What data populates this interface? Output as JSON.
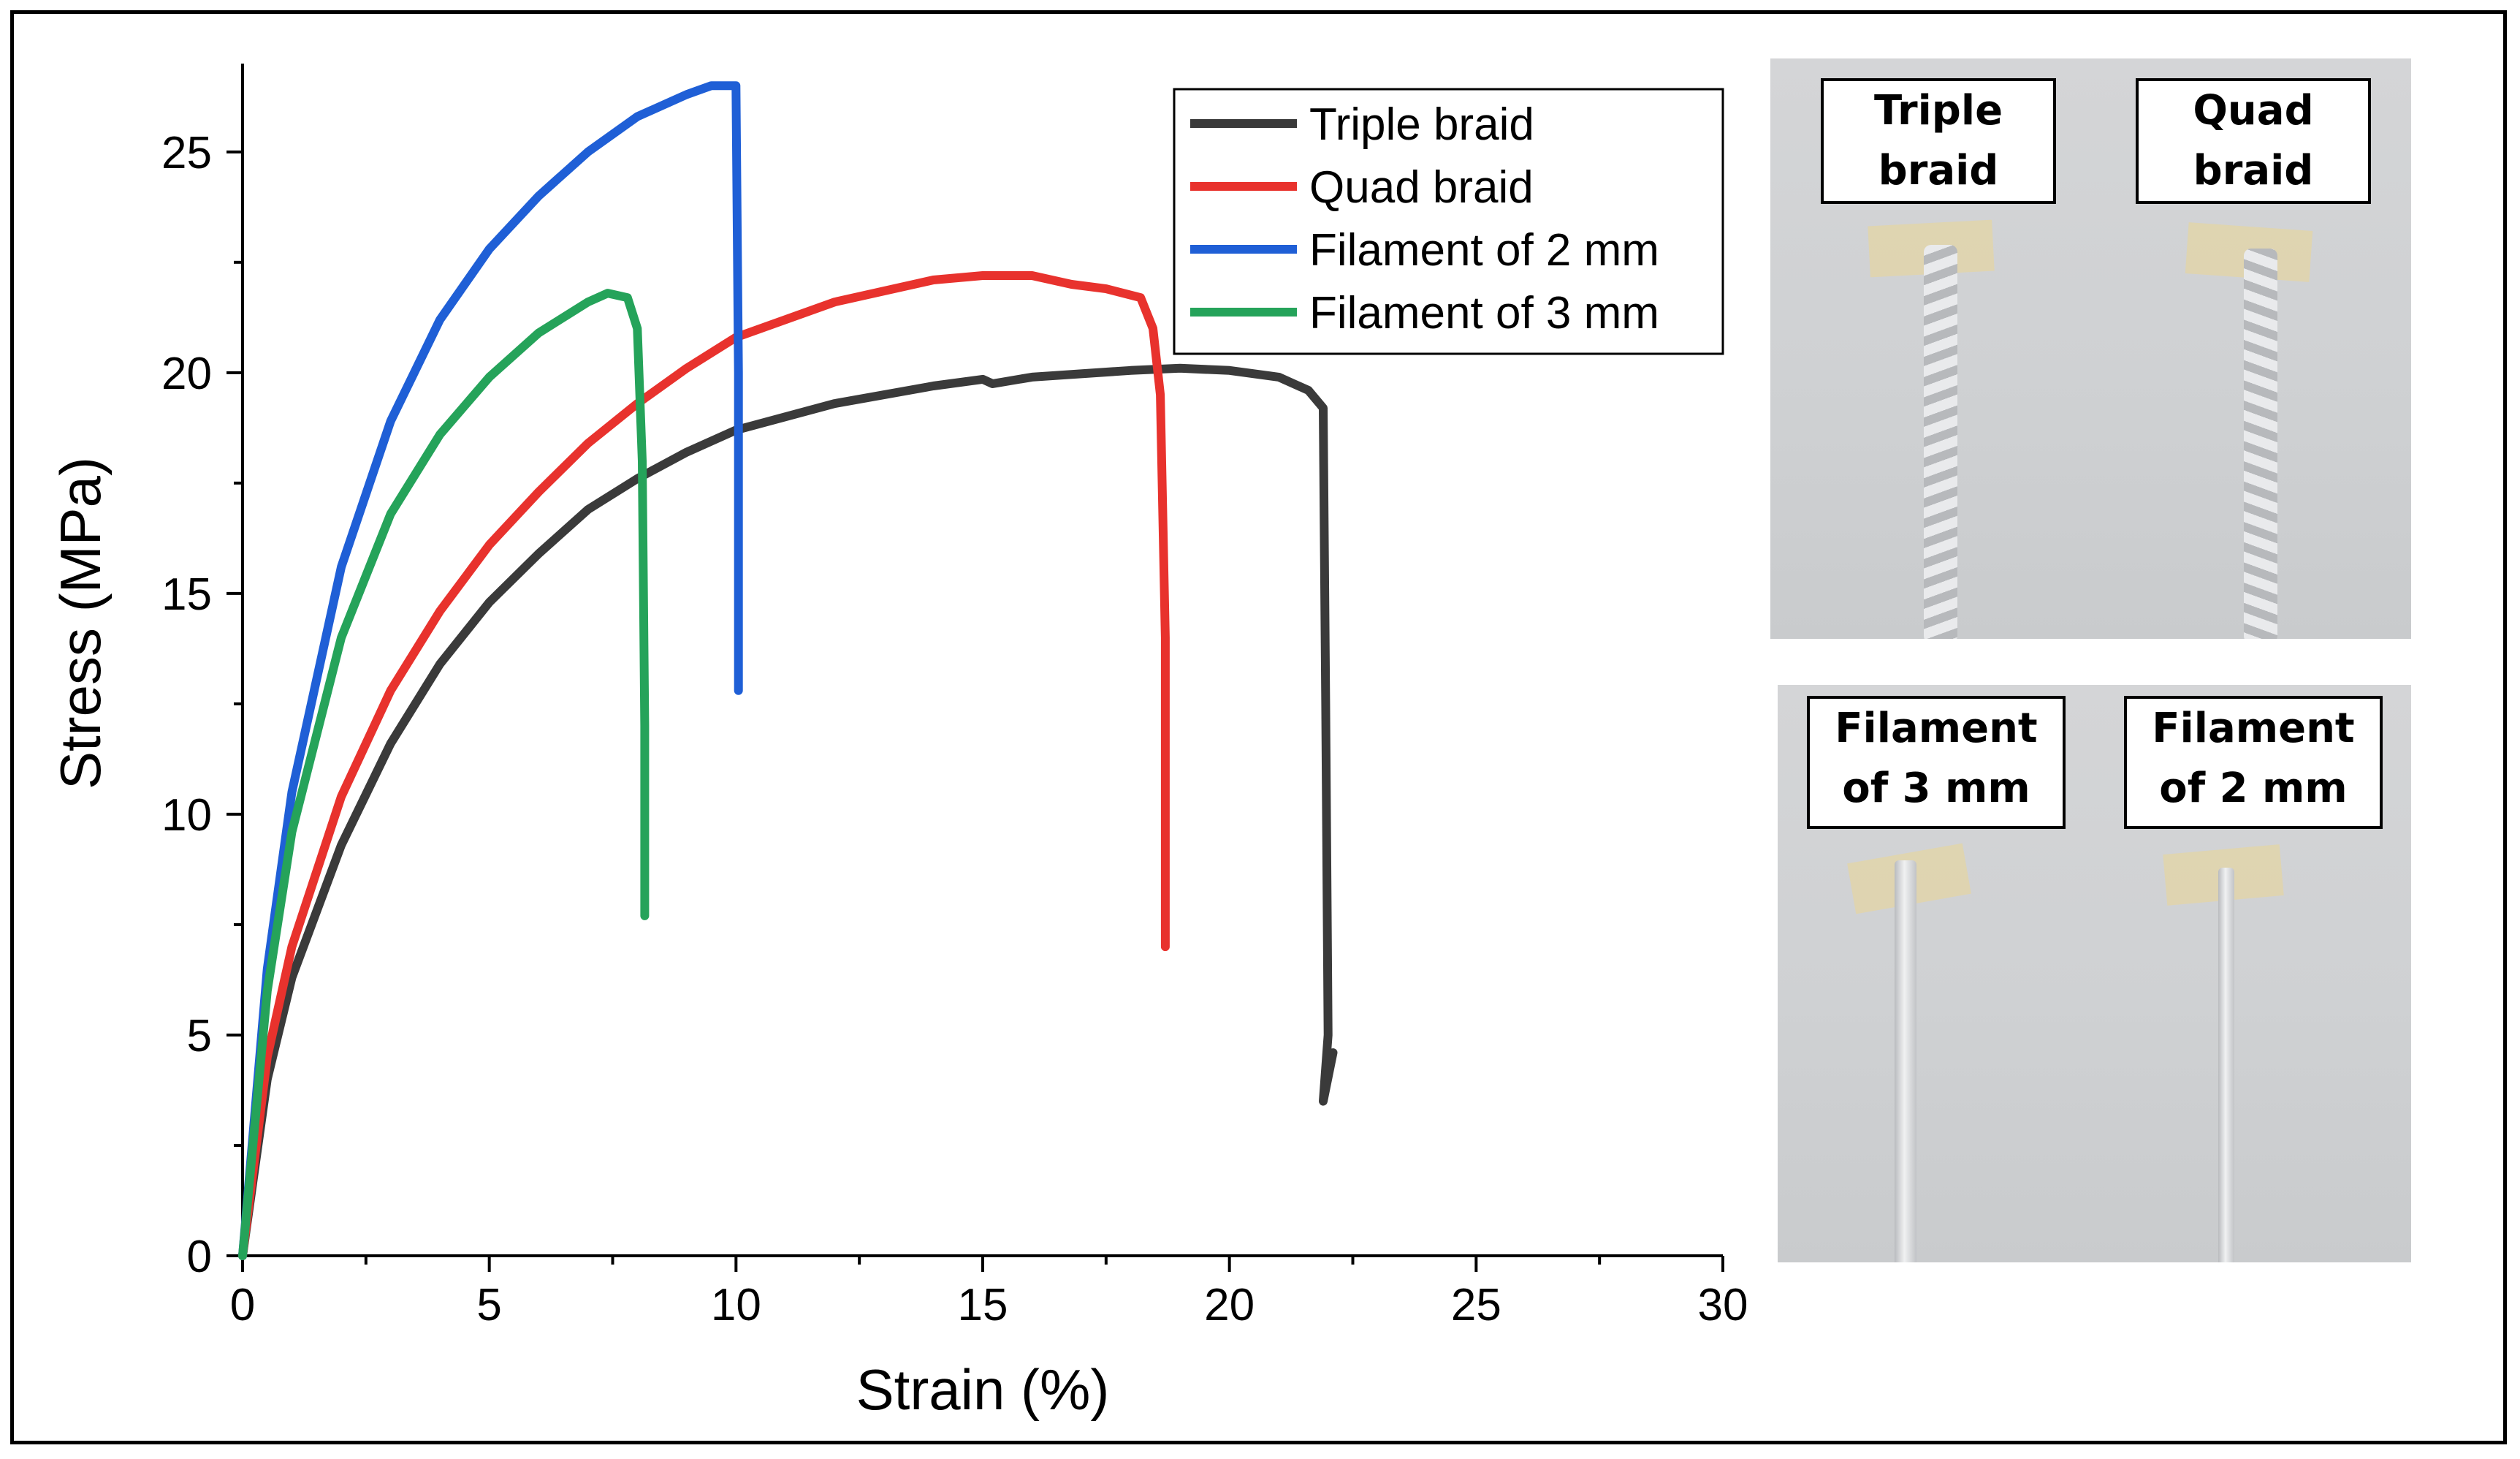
{
  "chart_data": {
    "type": "line",
    "xlabel": "Strain (%)",
    "ylabel": "Stress (MPa)",
    "xlim": [
      0,
      30
    ],
    "ylim": [
      0,
      27
    ],
    "xticks": [
      0,
      5,
      10,
      15,
      20,
      25,
      30
    ],
    "yticks": [
      0,
      5,
      10,
      15,
      20,
      25
    ],
    "legend_position": "top-right",
    "series": [
      {
        "name": "Triple braid",
        "color": "#3a3a3a",
        "x": [
          0,
          0.5,
          1,
          2,
          3,
          4,
          5,
          6,
          7,
          8,
          9,
          10,
          12,
          14,
          15,
          15.2,
          16,
          18,
          19,
          20,
          21,
          21.6,
          21.9,
          21.95,
          22.0,
          21.9,
          22.1
        ],
        "y": [
          0,
          4.0,
          6.3,
          9.3,
          11.6,
          13.4,
          14.8,
          15.9,
          16.9,
          17.6,
          18.2,
          18.7,
          19.3,
          19.7,
          19.85,
          19.75,
          19.9,
          20.05,
          20.1,
          20.05,
          19.9,
          19.6,
          19.2,
          12.5,
          5.0,
          3.5,
          4.6
        ]
      },
      {
        "name": "Quad braid",
        "color": "#e8322d",
        "x": [
          0,
          0.5,
          1,
          2,
          3,
          4,
          5,
          6,
          7,
          8,
          9,
          10,
          12,
          14,
          15,
          16,
          16.8,
          17.5,
          18.2,
          18.45,
          18.6,
          18.7,
          18.7
        ],
        "y": [
          0,
          4.5,
          7.0,
          10.4,
          12.8,
          14.6,
          16.1,
          17.3,
          18.4,
          19.3,
          20.1,
          20.8,
          21.6,
          22.1,
          22.2,
          22.2,
          22.0,
          21.9,
          21.7,
          21.0,
          19.5,
          14.0,
          7.0
        ]
      },
      {
        "name": "Filament of 2 mm",
        "color": "#1f5fd6",
        "x": [
          0,
          0.5,
          1,
          2,
          3,
          4,
          5,
          6,
          7,
          8,
          9,
          9.5,
          10,
          10.05,
          10.05
        ],
        "y": [
          0,
          6.5,
          10.5,
          15.6,
          18.9,
          21.2,
          22.8,
          24.0,
          25.0,
          25.8,
          26.3,
          26.5,
          26.5,
          20.0,
          12.8
        ]
      },
      {
        "name": "Filament of 3 mm",
        "color": "#25a35a",
        "x": [
          0,
          0.5,
          1,
          2,
          3,
          4,
          5,
          6,
          7,
          7.4,
          7.8,
          8.0,
          8.1,
          8.15,
          8.15
        ],
        "y": [
          0,
          6.0,
          9.6,
          14.0,
          16.8,
          18.6,
          19.9,
          20.9,
          21.6,
          21.8,
          21.7,
          21.0,
          18.0,
          12.0,
          7.7
        ]
      }
    ]
  },
  "photos": [
    {
      "labels": [
        {
          "line1": "Triple",
          "line2": "braid"
        },
        {
          "line1": "Quad",
          "line2": "braid"
        }
      ]
    },
    {
      "labels": [
        {
          "line1": "Filament",
          "line2": "of 3 mm"
        },
        {
          "line1": "Filament",
          "line2": "of 2 mm"
        }
      ]
    }
  ]
}
